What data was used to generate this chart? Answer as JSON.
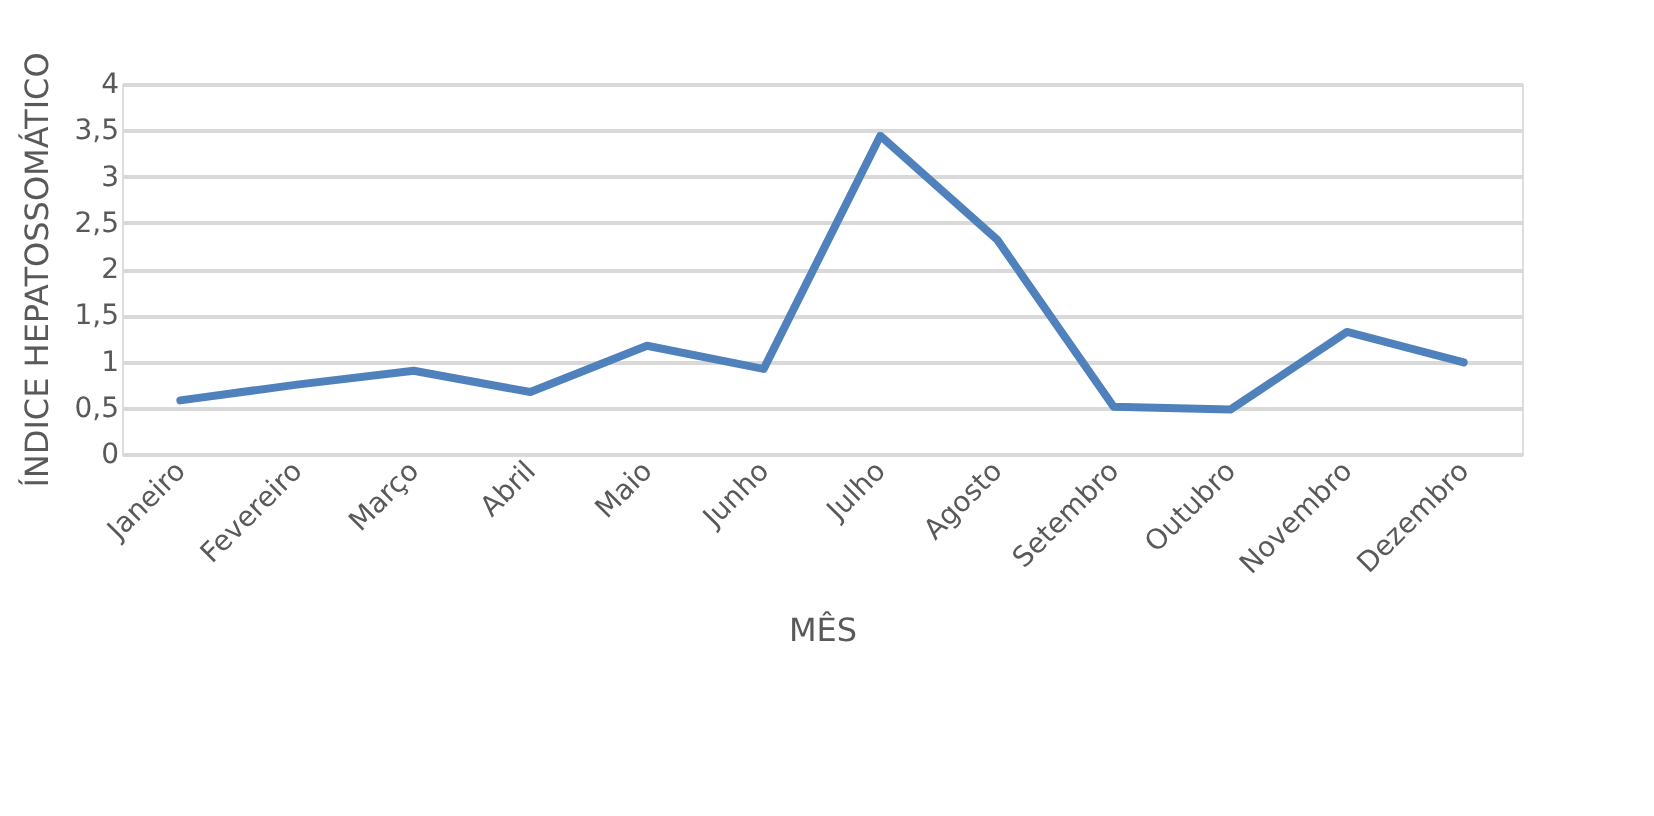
{
  "chart_data": {
    "type": "line",
    "xlabel": "MÊS",
    "ylabel": "ÍNDICE HEPATOSSOMÁTICO",
    "categories": [
      "Janeiro",
      "Fevereiro",
      "Março",
      "Abril",
      "Maio",
      "Junho",
      "Julho",
      "Agosto",
      "Setembro",
      "Outubro",
      "Novembro",
      "Dezembro"
    ],
    "series": [
      {
        "color": "#4f81bd",
        "values": [
          0.58,
          0.75,
          0.9,
          0.67,
          1.17,
          0.92,
          3.44,
          2.32,
          0.51,
          0.48,
          1.32,
          0.99
        ]
      }
    ],
    "ylim": [
      0,
      4
    ],
    "yticks": [
      0,
      {
        "value": 0.5,
        "label": "0,5"
      },
      1,
      {
        "value": 1.5,
        "label": "1,5"
      },
      2,
      {
        "value": 2.5,
        "label": "2,5"
      },
      3,
      {
        "value": 3.5,
        "label": "3,5"
      },
      4
    ],
    "grid": "y",
    "legend": false,
    "marker": "none",
    "line_style": "solid"
  }
}
